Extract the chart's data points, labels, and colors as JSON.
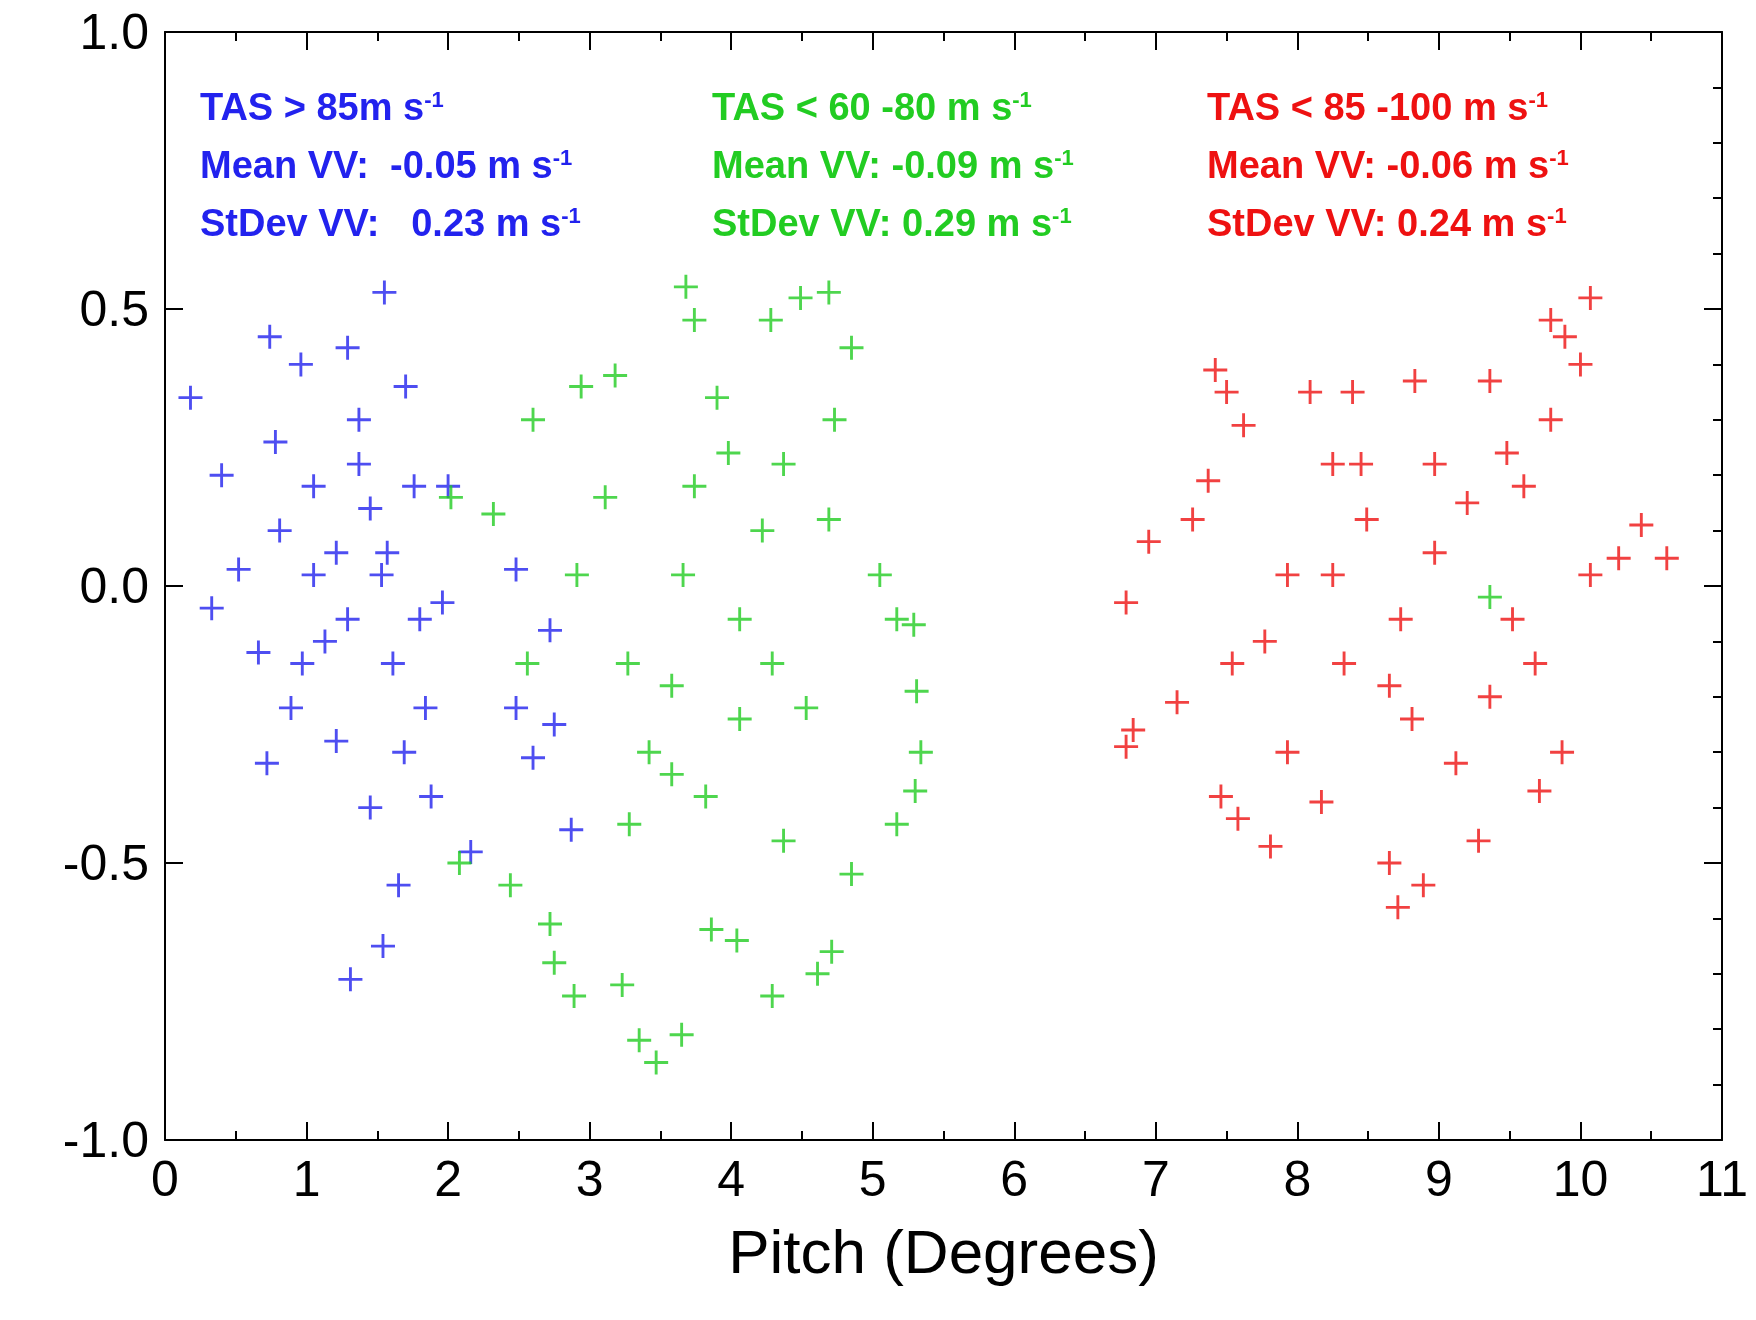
{
  "chart_data": {
    "type": "scatter",
    "xlabel": "Pitch (Degrees)",
    "marker": "cross",
    "grid": false,
    "xlim": [
      0,
      11
    ],
    "xticks": [
      0,
      1,
      2,
      3,
      4,
      5,
      6,
      7,
      8,
      9,
      10,
      11
    ],
    "ylim": [
      -1,
      1
    ],
    "yticks": [
      {
        "value": -1,
        "label": "-1.0"
      },
      {
        "value": -0.5,
        "label": "-0.5"
      },
      {
        "value": 0,
        "label": "0.0"
      },
      {
        "value": 0.5,
        "label": "0.5"
      },
      {
        "value": 1,
        "label": "1.0"
      }
    ],
    "annotations": [
      "TAS > 85m s$^{-1}$",
      "Mean VV:  -0.05 m s$^{-1}$",
      "StDev VV:   0.23 m s$^{-1}$",
      "TAS < 60 -80 m s$^{-1}$",
      "Mean VV: -0.09 m s$^{-1}$",
      "StDev VV: 0.29 m s$^{-1}$",
      "TAS < 85 -100 m s$^{-1}$",
      "Mean VV: -0.06 m s$^{-1}$",
      "StDev VV: 0.24 m s$^{-1}$"
    ],
    "series": [
      {
        "color": "#2222ee",
        "x": [
          0.18,
          0.33,
          0.4,
          0.52,
          0.74,
          0.72,
          0.78,
          0.89,
          0.96,
          1.05,
          1.13,
          1.21,
          1.29,
          1.31,
          1.37,
          1.45,
          1.53,
          1.55,
          1.54,
          1.61,
          1.65,
          1.7,
          1.76,
          1.84,
          1.88,
          2.0,
          1.96,
          2.16,
          2.48,
          2.48,
          2.6,
          2.72,
          2.75,
          2.87,
          1.45,
          1.21,
          0.81,
          0.66,
          0.97,
          1.29,
          1.69,
          1.37,
          1.57,
          1.8,
          1.05
        ],
        "values": [
          0.34,
          -0.04,
          0.2,
          0.03,
          0.45,
          -0.32,
          0.26,
          -0.22,
          0.4,
          0.18,
          -0.1,
          0.06,
          0.43,
          -0.71,
          0.3,
          0.14,
          0.02,
          0.53,
          -0.65,
          -0.14,
          -0.54,
          0.36,
          0.18,
          -0.22,
          -0.38,
          0.18,
          -0.03,
          -0.48,
          0.03,
          -0.22,
          -0.31,
          -0.08,
          -0.25,
          -0.44,
          -0.4,
          -0.28,
          0.1,
          -0.12,
          -0.14,
          -0.06,
          -0.3,
          0.22,
          0.06,
          -0.06,
          0.02
        ]
      },
      {
        "color": "#22cc22",
        "x": [
          2.02,
          2.08,
          2.32,
          2.6,
          2.72,
          2.75,
          2.89,
          2.94,
          3.18,
          3.23,
          3.35,
          3.47,
          3.65,
          3.68,
          3.74,
          3.27,
          3.28,
          3.42,
          3.58,
          3.66,
          3.74,
          3.9,
          3.98,
          4.06,
          3.86,
          4.04,
          4.29,
          4.28,
          4.49,
          4.69,
          4.85,
          4.73,
          4.69,
          5.05,
          5.17,
          5.29,
          5.31,
          5.34,
          5.3,
          5.17,
          4.71,
          4.61,
          4.85,
          4.53,
          4.29,
          4.22,
          4.37,
          3.11,
          2.91,
          2.56,
          3.58,
          3.82,
          4.06,
          4.37,
          2.44,
          9.36
        ],
        "values": [
          0.16,
          -0.5,
          0.13,
          0.3,
          -0.61,
          -0.68,
          -0.74,
          0.36,
          0.38,
          -0.72,
          -0.82,
          -0.86,
          -0.81,
          0.54,
          0.48,
          -0.14,
          -0.43,
          -0.3,
          -0.18,
          0.02,
          0.18,
          0.34,
          0.24,
          -0.06,
          -0.62,
          -0.64,
          -0.74,
          0.48,
          0.52,
          0.53,
          0.43,
          0.3,
          0.12,
          0.02,
          -0.06,
          -0.07,
          -0.19,
          -0.3,
          -0.37,
          -0.43,
          -0.66,
          -0.7,
          -0.52,
          -0.22,
          -0.14,
          0.1,
          0.22,
          0.16,
          0.02,
          -0.14,
          -0.34,
          -0.38,
          -0.24,
          -0.46,
          -0.54,
          -0.02
        ]
      },
      {
        "color": "#ee1111",
        "x": [
          6.79,
          6.79,
          6.84,
          6.95,
          7.15,
          7.26,
          7.42,
          7.5,
          7.37,
          7.46,
          7.58,
          7.62,
          7.81,
          7.77,
          7.93,
          8.09,
          8.17,
          8.25,
          8.39,
          8.33,
          8.45,
          8.65,
          8.71,
          8.83,
          8.89,
          8.81,
          8.97,
          9.12,
          8.97,
          9.2,
          9.28,
          9.36,
          9.48,
          9.6,
          9.71,
          9.79,
          9.87,
          9.79,
          9.89,
          10.07,
          10.0,
          10.07,
          10.27,
          10.43,
          10.61,
          9.52,
          8.73,
          7.93,
          7.54,
          8.65,
          9.36,
          9.68,
          8.25,
          8.49
        ],
        "values": [
          -0.03,
          -0.29,
          -0.26,
          0.08,
          -0.21,
          0.12,
          0.39,
          0.35,
          0.19,
          -0.38,
          -0.42,
          0.29,
          -0.47,
          -0.1,
          -0.3,
          0.35,
          -0.39,
          0.02,
          0.35,
          -0.14,
          0.22,
          -0.5,
          -0.58,
          0.37,
          -0.54,
          -0.24,
          0.06,
          -0.32,
          0.22,
          0.15,
          -0.46,
          0.37,
          0.24,
          0.18,
          -0.37,
          0.3,
          -0.3,
          0.48,
          0.45,
          0.52,
          0.4,
          0.02,
          0.05,
          0.11,
          0.05,
          -0.06,
          -0.06,
          0.02,
          -0.14,
          -0.18,
          -0.2,
          -0.14,
          0.22,
          0.12
        ]
      }
    ]
  }
}
